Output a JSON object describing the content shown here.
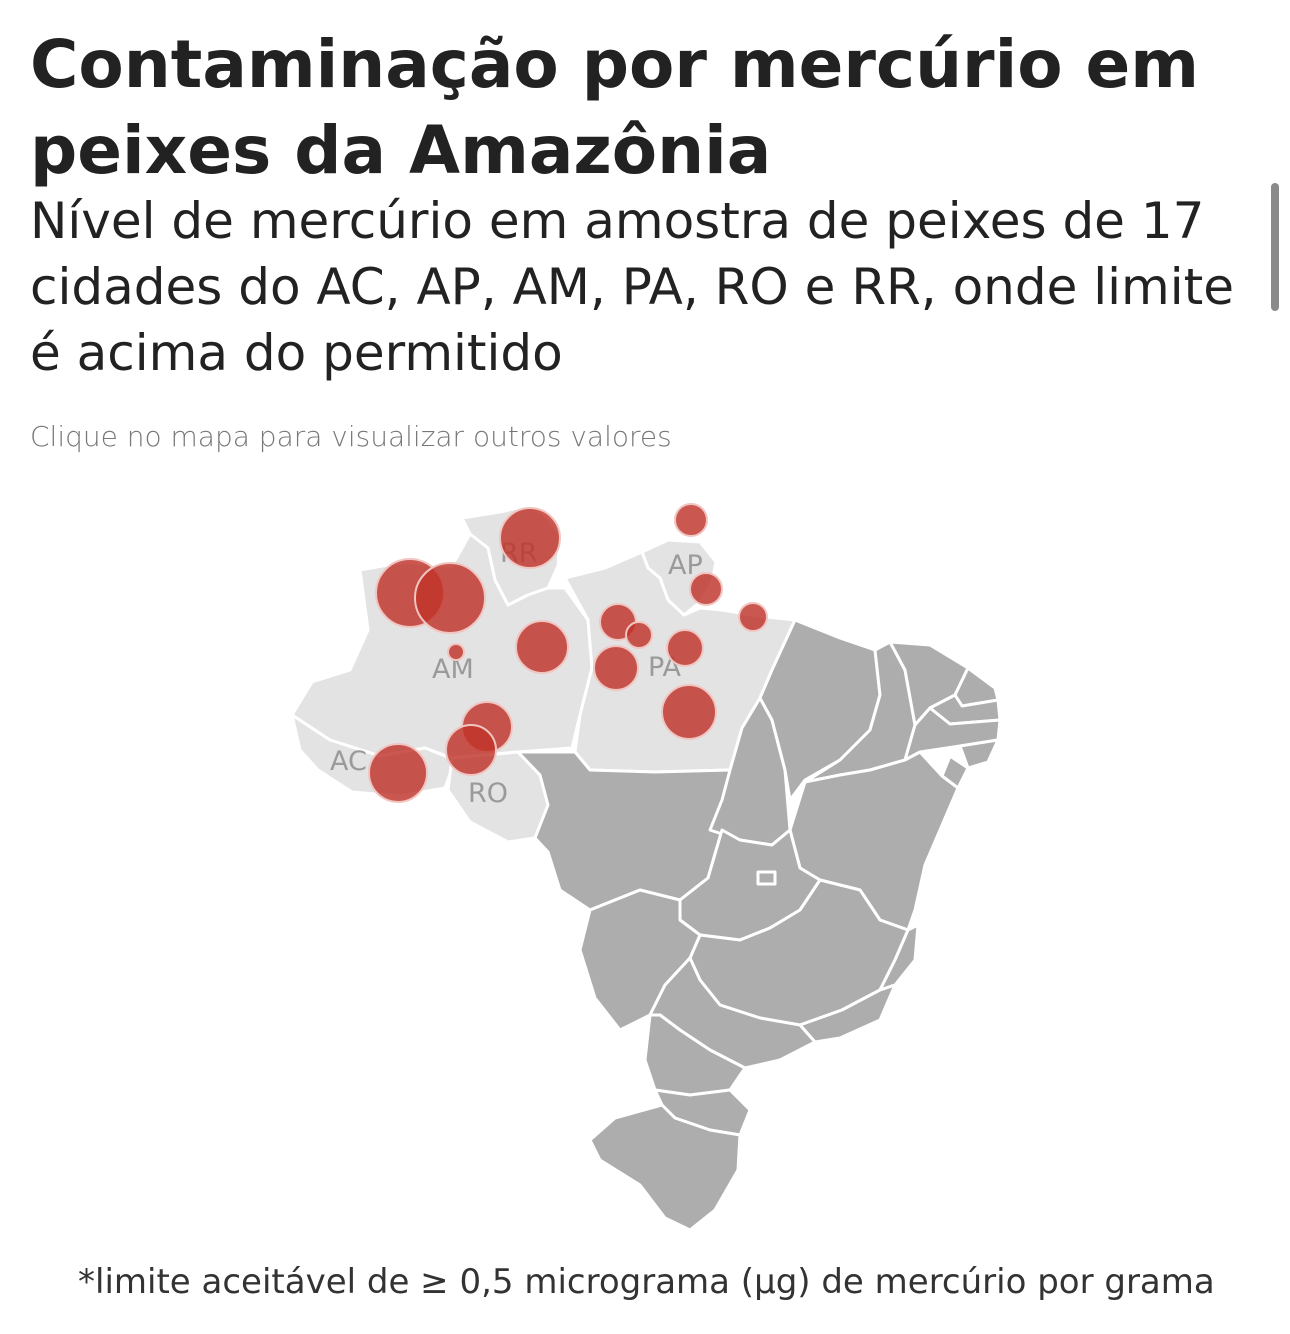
{
  "header": {
    "title": "Contaminação por mercúrio em peixes da Amazônia",
    "subtitle": "Nível de mercúrio em amostra de peixes de 17 cidades do AC, AP, AM, PA, RO e RR, onde limite é acima do permitido",
    "hint": "Clique no mapa para visualizar outros valores"
  },
  "map": {
    "state_labels": {
      "RR": "RR",
      "AP": "AP",
      "AM": "AM",
      "PA": "PA",
      "AC": "AC",
      "RO": "RO"
    },
    "colors": {
      "amazon_states": "#e3e3e3",
      "other_states": "#adadad",
      "bubble": "#bf3329"
    }
  },
  "footnote": "*limite aceitável de ≥ 0,5 micrograma (μg) de mercúrio por grama"
}
